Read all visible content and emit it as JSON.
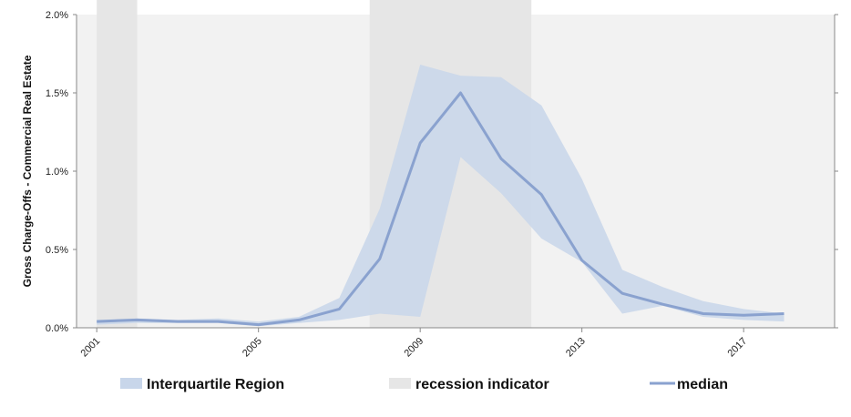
{
  "chart_data": {
    "type": "line",
    "ylabel": "Gross Charge-Offs - Commercial Real Estate",
    "xlabel": "",
    "x_ticks": [
      "2001",
      "2005",
      "2009",
      "2013",
      "2017"
    ],
    "y_ticks": [
      "0.0%",
      "0.5%",
      "1.0%",
      "1.5%",
      "2.0%"
    ],
    "x_range": [
      2000.5,
      2019.25
    ],
    "ylim": [
      0,
      2.0
    ],
    "y_unit": "%",
    "grid": false,
    "legend": {
      "placement": "bottom",
      "items": [
        "Interquartile Region",
        "recession indicator",
        "median"
      ]
    },
    "recessions": [
      [
        2001.0,
        2002.0
      ],
      [
        2007.75,
        2011.75
      ]
    ],
    "series": [
      {
        "name": "median",
        "kind": "line",
        "color": "#8aa2cf",
        "x": [
          2001,
          2002,
          2003,
          2004,
          2005,
          2006,
          2007,
          2008,
          2009,
          2010,
          2011,
          2012,
          2013,
          2014,
          2015,
          2016,
          2017,
          2018
        ],
        "values": [
          0.04,
          0.05,
          0.04,
          0.04,
          0.02,
          0.05,
          0.12,
          0.44,
          1.18,
          1.5,
          1.08,
          0.85,
          0.43,
          0.22,
          0.15,
          0.09,
          0.08,
          0.09
        ]
      },
      {
        "name": "Interquartile Region",
        "kind": "band",
        "color": "#c8d6ea",
        "x": [
          2001,
          2002,
          2003,
          2004,
          2005,
          2006,
          2007,
          2008,
          2009,
          2010,
          2011,
          2012,
          2013,
          2014,
          2015,
          2016,
          2017,
          2018
        ],
        "upper": [
          0.05,
          0.06,
          0.05,
          0.06,
          0.04,
          0.07,
          0.19,
          0.76,
          1.68,
          1.61,
          1.6,
          1.42,
          0.95,
          0.37,
          0.26,
          0.17,
          0.12,
          0.09
        ],
        "lower": [
          0.02,
          0.03,
          0.03,
          0.03,
          0.01,
          0.03,
          0.05,
          0.09,
          0.07,
          1.09,
          0.86,
          0.57,
          0.42,
          0.09,
          0.14,
          0.07,
          0.05,
          0.04
        ]
      }
    ],
    "colors": {
      "recession": "#e6e6e6",
      "plot_background": "#f2f2f2",
      "axis": "#888888"
    }
  }
}
